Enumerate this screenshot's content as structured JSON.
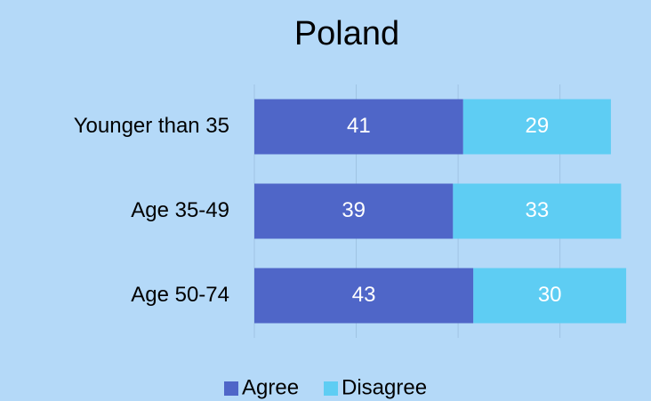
{
  "chart_data": {
    "type": "stacked_barh",
    "title": "Poland",
    "categories": [
      "Younger than 35",
      "Age 35-49",
      "Age 50-74"
    ],
    "series": [
      {
        "name": "Agree",
        "color": "#4f66c8",
        "values": [
          41,
          39,
          43
        ]
      },
      {
        "name": "Disagree",
        "color": "#5ecdf3",
        "values": [
          29,
          33,
          30
        ]
      }
    ],
    "xlim": [
      0,
      77
    ],
    "xticks": [
      0,
      20,
      40,
      60
    ],
    "grid": true,
    "legend": "bottom"
  }
}
